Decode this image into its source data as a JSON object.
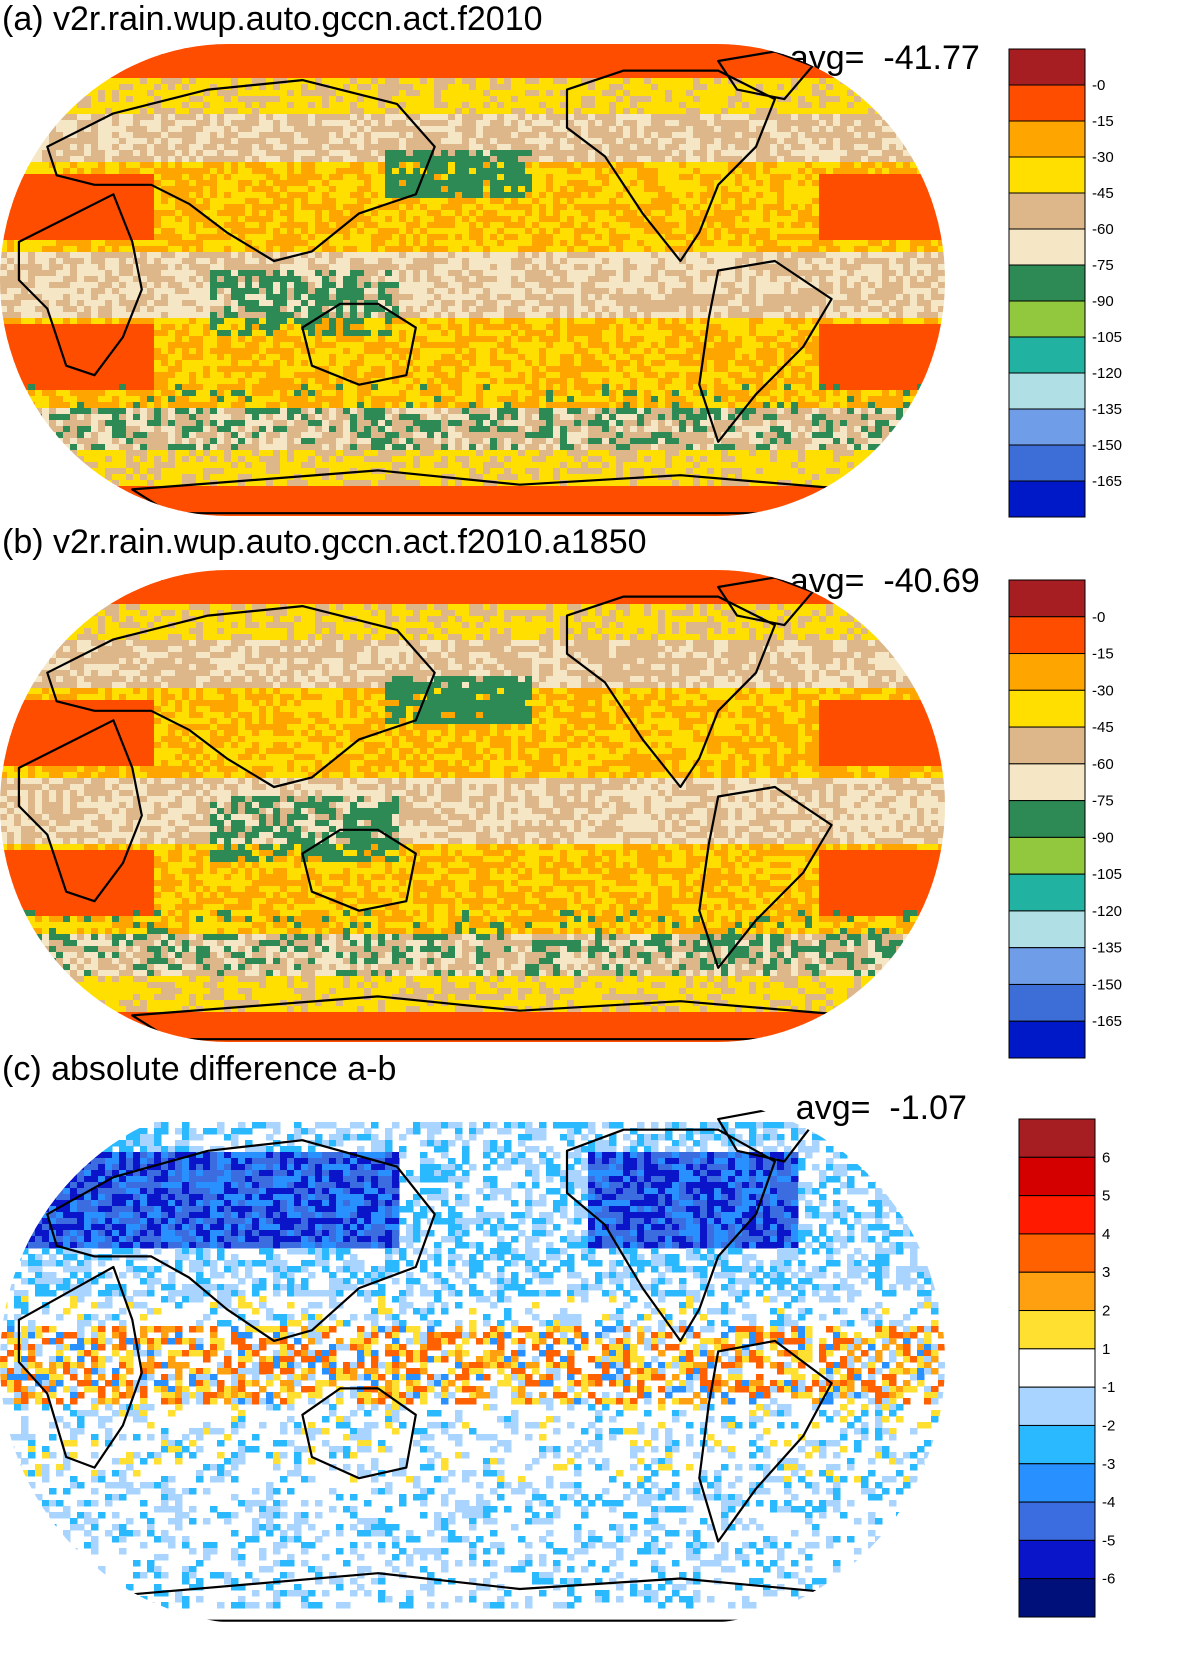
{
  "panels": [
    {
      "title": "(a) v2r.rain.wup.auto.gccn.act.f2010",
      "avg_label": "avg=",
      "avg_value": "-41.77",
      "colorbar": {
        "colors": [
          "#a61e22",
          "#ff4d00",
          "#ffa500",
          "#ffdf00",
          "#ddb789",
          "#f5e6c5",
          "#2e8a55",
          "#92c83e",
          "#22b2a2",
          "#b0e0e6",
          "#6f9de8",
          "#3d6ed8",
          "#0019c8"
        ],
        "labels": [
          "-0",
          "-15",
          "-30",
          "-45",
          "-60",
          "-75",
          "-90",
          "-105",
          "-120",
          "-135",
          "-150",
          "-165"
        ]
      }
    },
    {
      "title": "(b) v2r.rain.wup.auto.gccn.act.f2010.a1850",
      "avg_label": "avg=",
      "avg_value": "-40.69",
      "colorbar": {
        "colors": [
          "#a61e22",
          "#ff4d00",
          "#ffa500",
          "#ffdf00",
          "#ddb789",
          "#f5e6c5",
          "#2e8a55",
          "#92c83e",
          "#22b2a2",
          "#b0e0e6",
          "#6f9de8",
          "#3d6ed8",
          "#0019c8"
        ],
        "labels": [
          "-0",
          "-15",
          "-30",
          "-45",
          "-60",
          "-75",
          "-90",
          "-105",
          "-120",
          "-135",
          "-150",
          "-165"
        ]
      }
    },
    {
      "title": "(c) absolute difference a-b",
      "avg_label": "avg=",
      "avg_value": "-1.07",
      "colorbar": {
        "colors": [
          "#a61e22",
          "#d40000",
          "#ff1a00",
          "#ff6000",
          "#ffa010",
          "#ffe030",
          "#ffffff",
          "#a8d4ff",
          "#2ab8ff",
          "#2890ff",
          "#3b6de0",
          "#0a14c8",
          "#00107a"
        ],
        "labels": [
          "6",
          "5",
          "4",
          "3",
          "2",
          "1",
          "-1",
          "-2",
          "-3",
          "-4",
          "-5",
          "-6"
        ]
      }
    }
  ]
}
